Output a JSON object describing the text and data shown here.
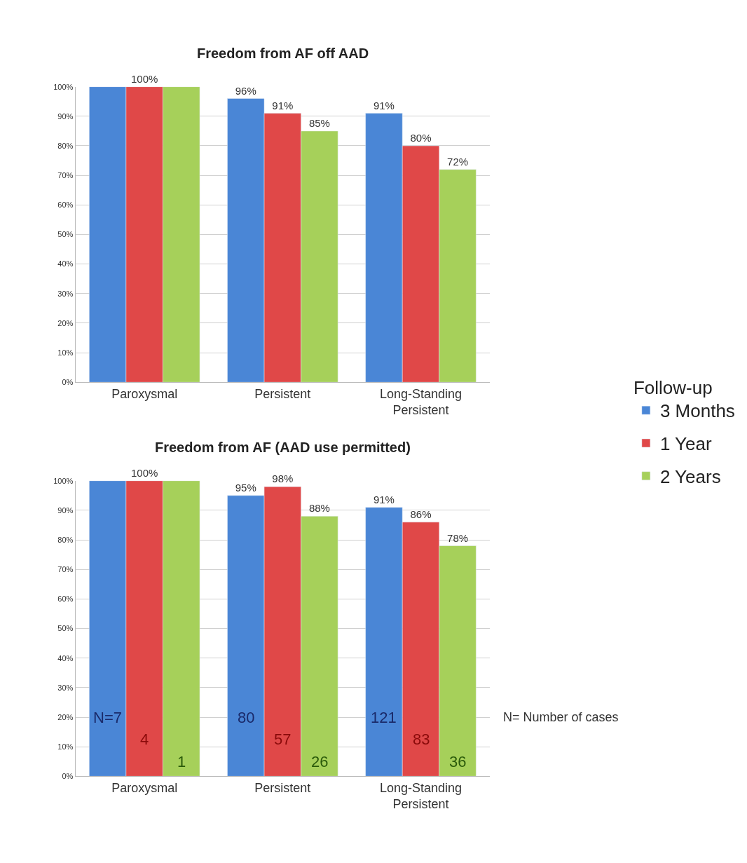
{
  "chart_data": [
    {
      "type": "bar",
      "title": "Freedom from AF off AAD",
      "legend_title": "Follow-up",
      "legend": "right",
      "grid": "y",
      "categories": [
        "Paroxysmal",
        "Persistent",
        "Long-Standing Persistent"
      ],
      "ylim": [
        0,
        100
      ],
      "yticks": [
        {
          "value": 0,
          "label": "0%"
        },
        {
          "value": 10,
          "label": "10%"
        },
        {
          "value": 20,
          "label": "20%"
        },
        {
          "value": 30,
          "label": "30%"
        },
        {
          "value": 40,
          "label": "40%"
        },
        {
          "value": 50,
          "label": "50%"
        },
        {
          "value": 60,
          "label": "60%"
        },
        {
          "value": 70,
          "label": "70%"
        },
        {
          "value": 80,
          "label": "80%"
        },
        {
          "value": 90,
          "label": "90%"
        },
        {
          "value": 100,
          "label": "100%"
        }
      ],
      "series": [
        {
          "name": "3 Months",
          "color": "#4a86d6",
          "values": [
            100,
            96,
            91
          ],
          "value_labels": [
            null,
            "96%",
            "91%"
          ]
        },
        {
          "name": "1 Year",
          "color": "#e04848",
          "values": [
            100,
            91,
            80
          ],
          "value_labels": [
            "100%",
            "91%",
            "80%"
          ]
        },
        {
          "name": "2 Years",
          "color": "#a6d05a",
          "values": [
            100,
            85,
            72
          ],
          "value_labels": [
            null,
            "85%",
            "72%"
          ]
        }
      ]
    },
    {
      "type": "bar",
      "title": "Freedom from AF (AAD use permitted)",
      "grid": "y",
      "categories": [
        "Paroxysmal",
        "Persistent",
        "Long-Standing Persistent"
      ],
      "ylim": [
        0,
        100
      ],
      "yticks": [
        {
          "value": 0,
          "label": "0%"
        },
        {
          "value": 10,
          "label": "10%"
        },
        {
          "value": 20,
          "label": "20%"
        },
        {
          "value": 30,
          "label": "30%"
        },
        {
          "value": 40,
          "label": "40%"
        },
        {
          "value": 50,
          "label": "50%"
        },
        {
          "value": 60,
          "label": "60%"
        },
        {
          "value": 70,
          "label": "70%"
        },
        {
          "value": 80,
          "label": "80%"
        },
        {
          "value": 90,
          "label": "90%"
        },
        {
          "value": 100,
          "label": "100%"
        }
      ],
      "series": [
        {
          "color": "#4a86d6",
          "values": [
            100,
            95,
            91
          ],
          "value_labels": [
            null,
            "95%",
            "91%"
          ]
        },
        {
          "color": "#e04848",
          "values": [
            100,
            98,
            86
          ],
          "value_labels": [
            "100%",
            "98%",
            "86%"
          ]
        },
        {
          "color": "#a6d05a",
          "values": [
            100,
            88,
            78
          ],
          "value_labels": [
            null,
            "88%",
            "78%"
          ]
        }
      ],
      "annotations": [
        "N=7",
        "4",
        "1",
        "80",
        "57",
        "26",
        "121",
        "83",
        "36",
        "N= Number of cases"
      ]
    }
  ]
}
